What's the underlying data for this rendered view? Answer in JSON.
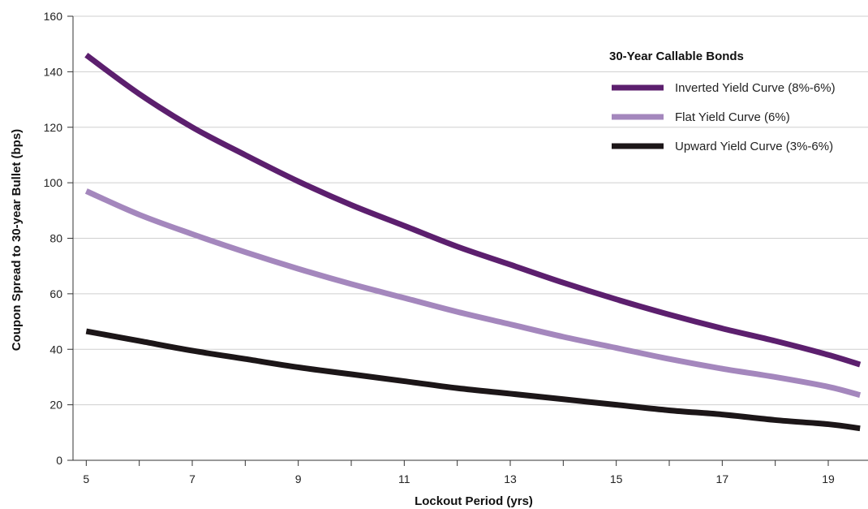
{
  "chart_data": {
    "type": "line",
    "title": "",
    "xlabel": "Lockout Period (yrs)",
    "ylabel": "Coupon Spread to 30-year Bullet (bps)",
    "xlim": [
      4.75,
      19.75
    ],
    "ylim": [
      0,
      160
    ],
    "x_ticks": [
      5,
      6,
      7,
      8,
      9,
      10,
      11,
      12,
      13,
      14,
      15,
      16,
      17,
      18,
      19
    ],
    "x_tick_labels": [
      "5",
      "7",
      "9",
      "11",
      "13",
      "15",
      "17",
      "19"
    ],
    "y_ticks": [
      0,
      20,
      40,
      60,
      80,
      100,
      120,
      140,
      160
    ],
    "grid": "horizontal",
    "legend": {
      "title": "30-Year Callable Bonds",
      "placement": "top-right"
    },
    "x": [
      5,
      6,
      7,
      8,
      9,
      10,
      11,
      12,
      13,
      14,
      15,
      16,
      17,
      18,
      19,
      19.6
    ],
    "series": [
      {
        "name": "Inverted Yield Curve (8%-6%)",
        "color": "#5c1f6e",
        "values": [
          146,
          132,
          120,
          110,
          100.5,
          92,
          84.5,
          77,
          70.5,
          64,
          58,
          52.5,
          47.5,
          43,
          38,
          34.5
        ]
      },
      {
        "name": "Flat Yield Curve (6%)",
        "color": "#a487bd",
        "values": [
          97,
          88.5,
          81.5,
          75,
          69,
          63.5,
          58.5,
          53.5,
          49,
          44.5,
          40.5,
          36.5,
          33,
          30,
          26.5,
          23.5
        ]
      },
      {
        "name": "Upward Yield Curve (3%-6%)",
        "color": "#1c1618",
        "values": [
          46.5,
          43,
          39.5,
          36.5,
          33.5,
          31,
          28.5,
          26,
          24,
          22,
          20,
          18,
          16.5,
          14.5,
          13,
          11.5
        ]
      }
    ]
  }
}
